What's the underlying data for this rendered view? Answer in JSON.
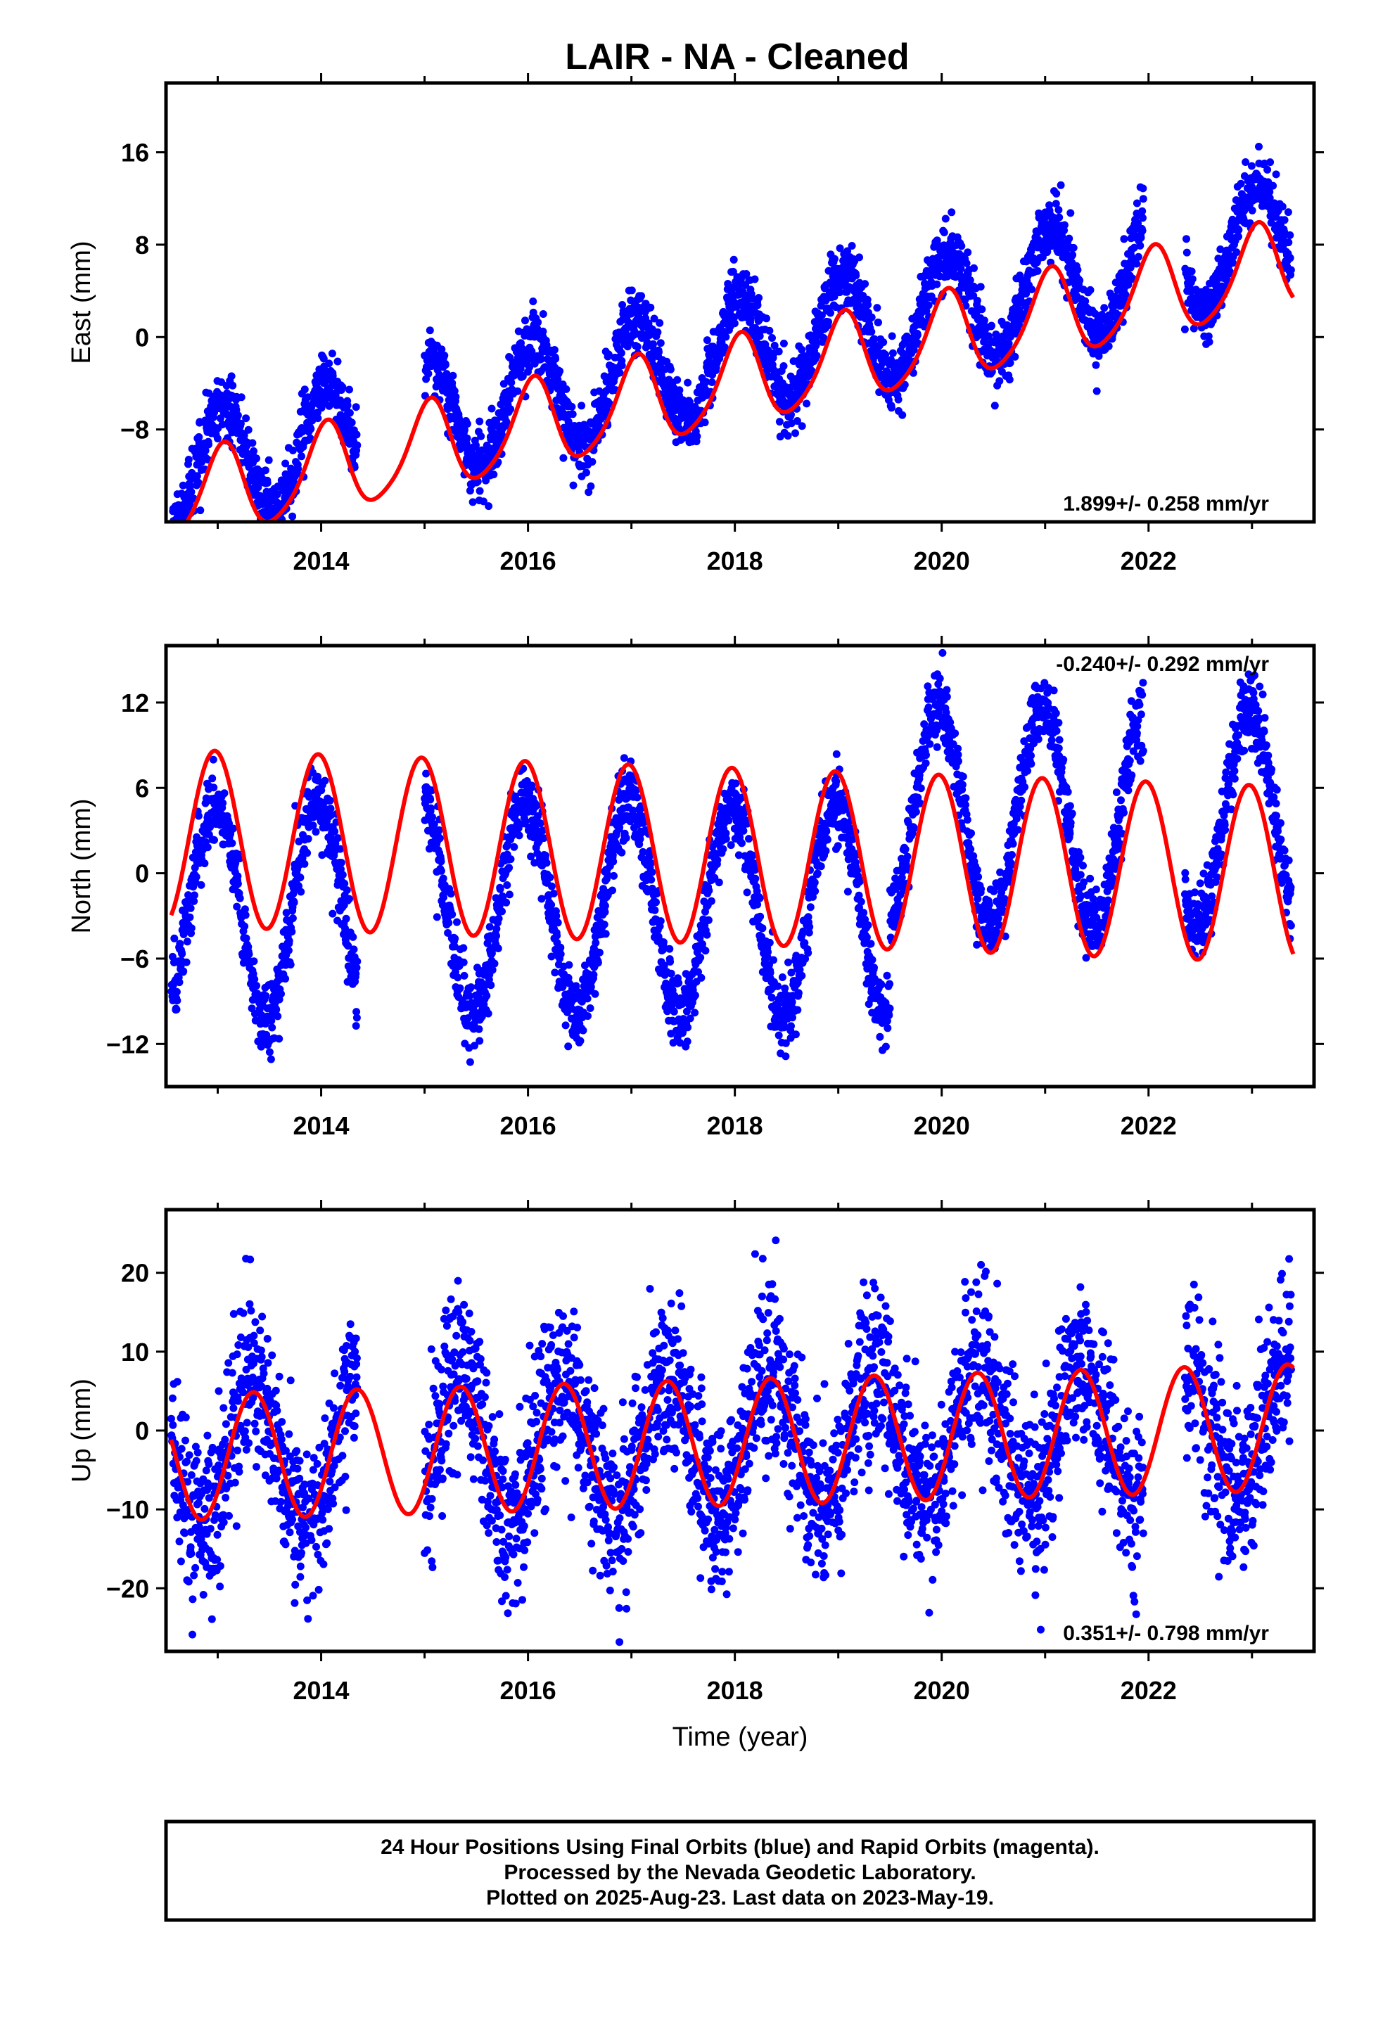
{
  "title": "LAIR  - NA - Cleaned",
  "colors": {
    "final_orbits": "#0000ff",
    "model": "#ff0000",
    "frame": "#000000"
  },
  "footer": {
    "line1": "24 Hour Positions Using Final Orbits (blue) and Rapid Orbits (magenta).",
    "line2": "Processed by the Nevada Geodetic Laboratory.",
    "line3": "Plotted on 2025-Aug-23. Last data on 2023-May-19."
  },
  "chart_data": [
    {
      "type": "scatter",
      "component": "east",
      "ylabel": "East (mm)",
      "xlabel": "",
      "xlim": [
        2012.5,
        2023.6
      ],
      "ylim": [
        -16,
        22
      ],
      "xticks": [
        "2014",
        "2016",
        "2018",
        "2020",
        "2022"
      ],
      "yticks": [
        "-8",
        "0",
        "8",
        "16"
      ],
      "rate_label": "1.899+/- 0.258 mm/yr",
      "rate_position": "bottom-right",
      "model": {
        "start": 2012.55,
        "end": 2023.4,
        "a": -4.0,
        "b": 1.899,
        "amp_annual": 3.8,
        "phase": 1.3,
        "amp_semi": 0.6,
        "phase_semi": 0.4,
        "t0": 2018
      },
      "obs_model": {
        "a": -1.5,
        "b": 1.899,
        "amp_annual": 5.0,
        "phase": 1.3,
        "noise": 1.4
      },
      "gaps": [
        [
          2014.35,
          2015.0
        ],
        [
          2021.95,
          2022.35
        ]
      ],
      "data_range": [
        2012.55,
        2023.38
      ]
    },
    {
      "type": "scatter",
      "component": "north",
      "ylabel": "North (mm)",
      "xlabel": "",
      "xlim": [
        2012.5,
        2023.6
      ],
      "ylim": [
        -15,
        16
      ],
      "xticks": [
        "2014",
        "2016",
        "2018",
        "2020",
        "2022"
      ],
      "yticks": [
        "-12",
        "-6",
        "0",
        "6",
        "12"
      ],
      "rate_label": "-0.240+/- 0.292 mm/yr",
      "rate_position": "top-right",
      "model": {
        "start": 2012.55,
        "end": 2023.4,
        "a": 1.2,
        "b": -0.24,
        "amp_annual": 6.2,
        "phase": 1.75,
        "amp_semi": 0.0,
        "phase_semi": 0.0,
        "t0": 2018
      },
      "obs_model": {
        "a": -2.5,
        "b": 0.0,
        "amp_annual": 7.5,
        "phase": 1.75,
        "noise": 1.3,
        "offset_after": 2019.5,
        "offset_value": 6.5
      },
      "gaps": [
        [
          2014.35,
          2015.0
        ],
        [
          2021.95,
          2022.35
        ]
      ],
      "data_range": [
        2012.55,
        2023.38
      ]
    },
    {
      "type": "scatter",
      "component": "up",
      "ylabel": "Up (mm)",
      "xlabel": "Time (year)",
      "xlim": [
        2012.5,
        2023.6
      ],
      "ylim": [
        -28,
        28
      ],
      "xticks": [
        "2014",
        "2016",
        "2018",
        "2020",
        "2022"
      ],
      "yticks": [
        "-20",
        "-10",
        "0",
        "10",
        "20"
      ],
      "rate_label": "0.351+/- 0.798 mm/yr",
      "rate_position": "bottom-right",
      "model": {
        "start": 2012.55,
        "end": 2023.4,
        "a": -1.5,
        "b": 0.351,
        "amp_annual": 8.0,
        "phase": -0.6,
        "amp_semi": 0.0,
        "phase_semi": 0.0,
        "t0": 2018
      },
      "obs_model": {
        "a": -1.5,
        "b": 0.351,
        "amp_annual": 9.0,
        "phase": -0.6,
        "noise": 5.5
      },
      "gaps": [
        [
          2014.35,
          2015.0
        ],
        [
          2021.95,
          2022.35
        ]
      ],
      "data_range": [
        2012.55,
        2023.38
      ]
    }
  ]
}
